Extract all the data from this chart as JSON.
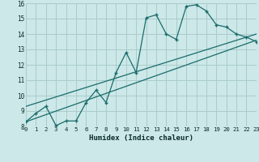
{
  "xlabel": "Humidex (Indice chaleur)",
  "bg_color": "#cce8e8",
  "grid_color": "#aacccc",
  "line_color": "#1a6b6b",
  "xlim": [
    0,
    23
  ],
  "ylim": [
    8,
    16
  ],
  "xticks": [
    0,
    1,
    2,
    3,
    4,
    5,
    6,
    7,
    8,
    9,
    10,
    11,
    12,
    13,
    14,
    15,
    16,
    17,
    18,
    19,
    20,
    21,
    22,
    23
  ],
  "yticks": [
    8,
    9,
    10,
    11,
    12,
    13,
    14,
    15,
    16
  ],
  "line1_x": [
    0,
    1,
    2,
    3,
    4,
    5,
    6,
    7,
    8,
    9,
    10,
    11,
    12,
    13,
    14,
    15,
    16,
    17,
    18,
    19,
    20,
    21,
    22,
    23
  ],
  "line1_y": [
    8.3,
    8.85,
    9.3,
    8.05,
    8.35,
    8.35,
    9.55,
    10.35,
    9.55,
    11.5,
    12.8,
    11.5,
    15.05,
    15.25,
    14.0,
    13.65,
    15.8,
    15.9,
    15.5,
    14.6,
    14.45,
    14.0,
    13.8,
    13.5
  ],
  "line2_x": [
    0,
    23
  ],
  "line2_y": [
    8.3,
    13.6
  ],
  "line3_x": [
    0,
    23
  ],
  "line3_y": [
    9.3,
    14.0
  ]
}
